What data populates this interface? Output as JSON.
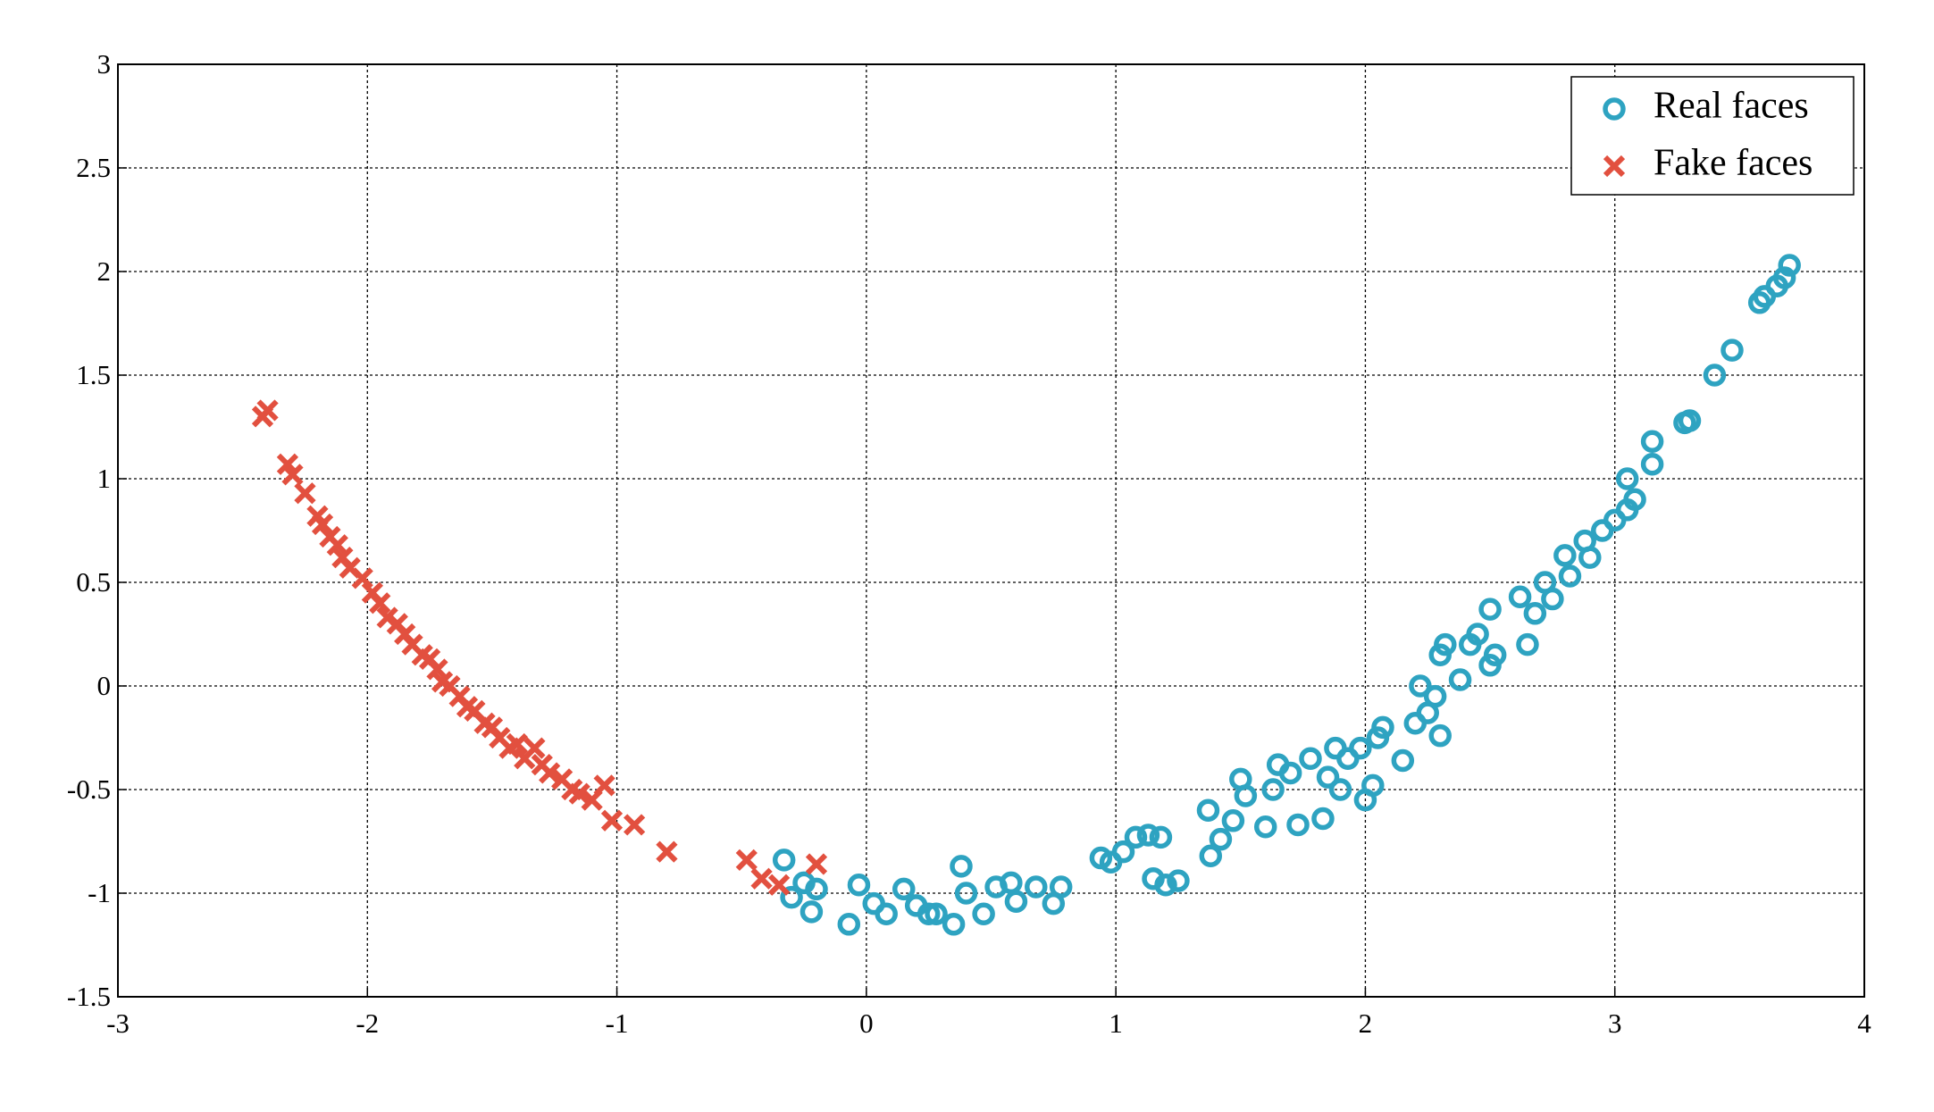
{
  "chart_data": {
    "type": "scatter",
    "xlim": [
      -3,
      4
    ],
    "ylim": [
      -1.5,
      3
    ],
    "xticks": [
      -3,
      -2,
      -1,
      0,
      1,
      2,
      3,
      4
    ],
    "yticks": [
      -1.5,
      -1,
      -0.5,
      0,
      0.5,
      1,
      1.5,
      2,
      2.5,
      3
    ],
    "grid": true,
    "legend": "upper right",
    "series": [
      {
        "name": "Real faces",
        "color": "#2ea3c1",
        "marker": "o",
        "x": [
          -0.33,
          -0.3,
          -0.25,
          -0.22,
          -0.2,
          -0.07,
          -0.03,
          0.03,
          0.08,
          0.15,
          0.2,
          0.25,
          0.28,
          0.35,
          0.38,
          0.4,
          0.47,
          0.52,
          0.58,
          0.6,
          0.68,
          0.75,
          0.78,
          0.94,
          0.98,
          1.03,
          1.08,
          1.13,
          1.15,
          1.18,
          1.2,
          1.25,
          1.37,
          1.38,
          1.42,
          1.47,
          1.5,
          1.52,
          1.6,
          1.63,
          1.65,
          1.7,
          1.73,
          1.78,
          1.83,
          1.85,
          1.88,
          1.9,
          1.93,
          1.98,
          2.0,
          2.03,
          2.05,
          2.07,
          2.15,
          2.2,
          2.22,
          2.25,
          2.28,
          2.3,
          2.3,
          2.32,
          2.38,
          2.42,
          2.45,
          2.5,
          2.5,
          2.52,
          2.62,
          2.65,
          2.68,
          2.72,
          2.75,
          2.8,
          2.82,
          2.88,
          2.9,
          2.95,
          3.0,
          3.05,
          3.05,
          3.08,
          3.15,
          3.15,
          3.28,
          3.3,
          3.4,
          3.47,
          3.58,
          3.6,
          3.65,
          3.68,
          3.7
        ],
        "values": [
          -0.84,
          -1.02,
          -0.95,
          -1.09,
          -0.98,
          -1.15,
          -0.96,
          -1.05,
          -1.1,
          -0.98,
          -1.06,
          -1.1,
          -1.1,
          -1.15,
          -0.87,
          -1.0,
          -1.1,
          -0.97,
          -0.95,
          -1.04,
          -0.97,
          -1.05,
          -0.97,
          -0.83,
          -0.85,
          -0.8,
          -0.73,
          -0.72,
          -0.93,
          -0.73,
          -0.96,
          -0.94,
          -0.6,
          -0.82,
          -0.74,
          -0.65,
          -0.45,
          -0.53,
          -0.68,
          -0.5,
          -0.38,
          -0.42,
          -0.67,
          -0.35,
          -0.64,
          -0.44,
          -0.3,
          -0.5,
          -0.35,
          -0.3,
          -0.55,
          -0.48,
          -0.25,
          -0.2,
          -0.36,
          -0.18,
          0,
          -0.13,
          -0.05,
          0.15,
          -0.24,
          0.2,
          0.03,
          0.2,
          0.25,
          0.37,
          0.1,
          0.15,
          0.43,
          0.2,
          0.35,
          0.5,
          0.42,
          0.63,
          0.53,
          0.7,
          0.62,
          0.75,
          0.8,
          0.85,
          1.0,
          0.9,
          1.07,
          1.18,
          1.27,
          1.28,
          1.5,
          1.62,
          1.85,
          1.88,
          1.93,
          1.97,
          2.03
        ]
      },
      {
        "name": "Fake faces",
        "color": "#e2503f",
        "marker": "x",
        "x": [
          -2.4,
          -2.42,
          -2.32,
          -2.3,
          -2.25,
          -2.2,
          -2.18,
          -2.15,
          -2.12,
          -2.1,
          -2.07,
          -2.02,
          -1.98,
          -1.95,
          -1.92,
          -1.88,
          -1.85,
          -1.82,
          -1.78,
          -1.75,
          -1.72,
          -1.7,
          -1.67,
          -1.63,
          -1.6,
          -1.57,
          -1.53,
          -1.5,
          -1.47,
          -1.43,
          -1.4,
          -1.37,
          -1.33,
          -1.3,
          -1.27,
          -1.22,
          -1.18,
          -1.15,
          -1.1,
          -1.05,
          -1.02,
          -0.93,
          -0.8,
          -0.48,
          -0.42,
          -0.35,
          -0.2
        ],
        "values": [
          1.33,
          1.3,
          1.07,
          1.02,
          0.93,
          0.82,
          0.78,
          0.72,
          0.68,
          0.62,
          0.57,
          0.52,
          0.45,
          0.4,
          0.33,
          0.3,
          0.25,
          0.2,
          0.15,
          0.13,
          0.08,
          0.02,
          0,
          -0.05,
          -0.1,
          -0.12,
          -0.18,
          -0.2,
          -0.25,
          -0.3,
          -0.28,
          -0.35,
          -0.3,
          -0.38,
          -0.42,
          -0.45,
          -0.5,
          -0.52,
          -0.55,
          -0.48,
          -0.65,
          -0.67,
          -0.8,
          -0.84,
          -0.93,
          -0.96,
          -0.86
        ]
      }
    ]
  }
}
